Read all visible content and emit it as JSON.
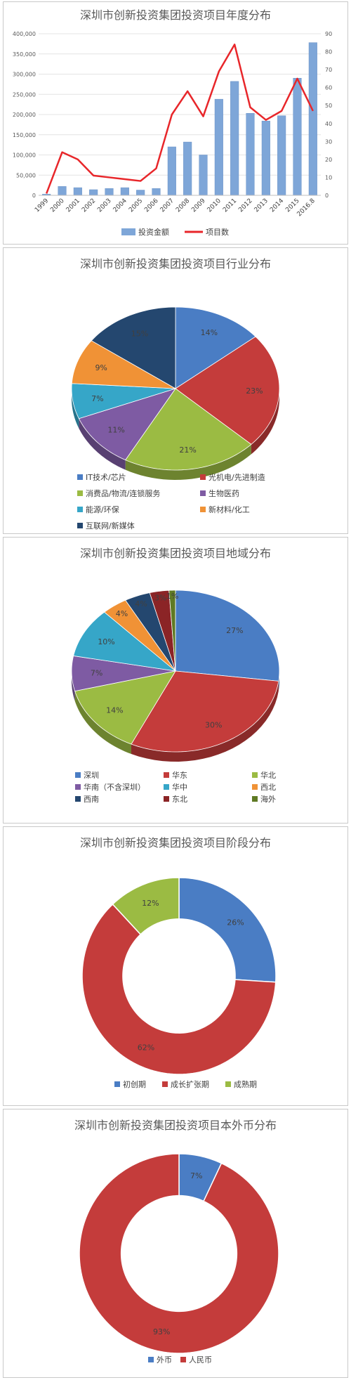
{
  "colors": {
    "bar": "#7ea6d8",
    "line": "#e8262a",
    "pie": [
      "#4a7dc4",
      "#c43c3b",
      "#9bbb43",
      "#7e5ba3",
      "#36a6c8",
      "#f09236",
      "#24476f"
    ],
    "region": [
      "#4a7dc4",
      "#c43c3b",
      "#9bbb43",
      "#7e5ba3",
      "#36a6c8",
      "#f09236",
      "#24476f",
      "#8b2426",
      "#5f7a24"
    ]
  },
  "chart_data": [
    {
      "type": "bar",
      "title": "深圳市创新投资集团投资项目年度分布",
      "categories": [
        "1999",
        "2000",
        "2001",
        "2002",
        "2003",
        "2004",
        "2005",
        "2006",
        "2007",
        "2008",
        "2009",
        "2010",
        "2011",
        "2012",
        "2013",
        "2014",
        "2015",
        "2016.8"
      ],
      "series": [
        {
          "name": "投资金额",
          "type": "bar",
          "axis": "left",
          "values": [
            3000,
            22000,
            19000,
            14000,
            17000,
            19000,
            13000,
            17000,
            120000,
            132000,
            100000,
            238000,
            282000,
            203000,
            184000,
            197000,
            290000,
            378000
          ]
        },
        {
          "name": "项目数",
          "type": "line",
          "axis": "right",
          "values": [
            1,
            24,
            20,
            11,
            10,
            9,
            8,
            15,
            45,
            58,
            44,
            69,
            84,
            49,
            42,
            47,
            65,
            47
          ]
        }
      ],
      "ylim": [
        0,
        400000
      ],
      "yticks": [
        "0",
        "50,000",
        "100,000",
        "150,000",
        "200,000",
        "250,000",
        "300,000",
        "350,000",
        "400,000"
      ],
      "y2lim": [
        0,
        90
      ],
      "y2ticks": [
        "0",
        "10",
        "20",
        "30",
        "40",
        "50",
        "60",
        "70",
        "80",
        "90"
      ],
      "legend": "bottom"
    },
    {
      "type": "pie",
      "title": "深圳市创新投资集团投资项目行业分布",
      "labels": [
        "IT技术/芯片",
        "光机电/先进制造",
        "消费品/物流/连锁服务",
        "生物医药",
        "能源/环保",
        "新材料/化工",
        "互联网/新媒体"
      ],
      "values": [
        14,
        23,
        21,
        11,
        7,
        9,
        15
      ],
      "value_labels": [
        "14%",
        "23%",
        "21%",
        "11%",
        "7%",
        "9%",
        "15%"
      ],
      "legend": "bottom"
    },
    {
      "type": "pie",
      "title": "深圳市创新投资集团投资项目地域分布",
      "labels": [
        "深圳",
        "华东",
        "华北",
        "华南（不含深圳）",
        "华中",
        "西北",
        "西南",
        "东北",
        "海外"
      ],
      "values": [
        27,
        30,
        14,
        7,
        10,
        4,
        4,
        3,
        1
      ],
      "value_labels": [
        "27%",
        "30%",
        "14%",
        "7%",
        "10%",
        "4%",
        "4%",
        "3%",
        "1%"
      ],
      "legend": "bottom"
    },
    {
      "type": "donut",
      "title": "深圳市创新投资集团投资项目阶段分布",
      "labels": [
        "初创期",
        "成长扩张期",
        "成熟期"
      ],
      "values": [
        26,
        62,
        12
      ],
      "value_labels": [
        "26%",
        "62%",
        "12%"
      ],
      "legend": "bottom"
    },
    {
      "type": "donut",
      "title": "深圳市创新投资集团投资项目本外币分布",
      "labels": [
        "外币",
        "人民币"
      ],
      "values": [
        7,
        93
      ],
      "value_labels": [
        "7%",
        "93%"
      ],
      "legend": "bottom"
    }
  ]
}
